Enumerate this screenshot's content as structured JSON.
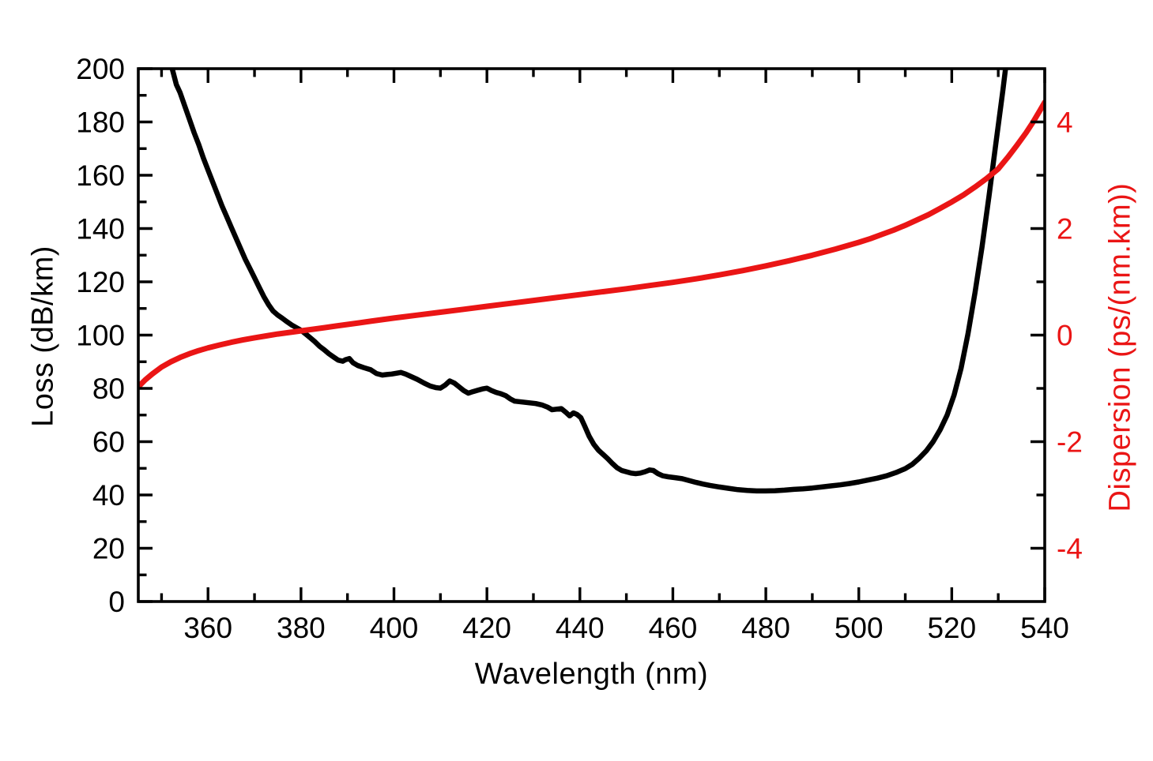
{
  "figure": {
    "background": "#ffffff"
  },
  "chart_data": {
    "type": "line",
    "title": "",
    "xlabel": "Wavelength (nm)",
    "ylabel_left": "Loss (dB/km)",
    "ylabel_right": "Dispersion (ps/(nm.km))",
    "grid": false,
    "legend": "none",
    "frame": "full-box-inward-ticks",
    "x_axis": {
      "range": [
        345,
        540
      ],
      "major_ticks": [
        360,
        380,
        400,
        420,
        440,
        460,
        480,
        500,
        520,
        540
      ],
      "minor_ticks": [
        350,
        370,
        390,
        410,
        430,
        450,
        470,
        490,
        510,
        530
      ],
      "tick_label_color": "#000000"
    },
    "y_left_axis": {
      "range": [
        0,
        200
      ],
      "major_ticks": [
        0,
        20,
        40,
        60,
        80,
        100,
        120,
        140,
        160,
        180,
        200
      ],
      "minor_ticks": [
        10,
        30,
        50,
        70,
        90,
        110,
        130,
        150,
        170,
        190
      ],
      "tick_label_color": "#000000"
    },
    "y_right_axis": {
      "range": [
        -5,
        5
      ],
      "major_ticks": [
        -4,
        -2,
        0,
        2,
        4
      ],
      "minor_ticks": [
        -3,
        -1,
        1,
        3
      ],
      "tick_label_color": "#ea1515"
    },
    "series": [
      {
        "name": "Loss",
        "data_name": "loss-curve",
        "axis": "left",
        "color": "#000000",
        "line_width": 6.5,
        "points": [
          [
            352.3,
            200
          ],
          [
            353.2,
            194
          ],
          [
            354,
            191
          ],
          [
            355,
            186
          ],
          [
            356,
            181
          ],
          [
            357,
            176
          ],
          [
            358,
            171.5
          ],
          [
            359,
            166.5
          ],
          [
            360,
            162
          ],
          [
            361,
            157.5
          ],
          [
            362,
            153
          ],
          [
            363,
            148.5
          ],
          [
            364,
            144.5
          ],
          [
            365,
            140.5
          ],
          [
            366,
            136.5
          ],
          [
            367,
            132.5
          ],
          [
            368,
            128.5
          ],
          [
            369,
            125
          ],
          [
            370,
            121.5
          ],
          [
            371,
            118
          ],
          [
            372,
            114.5
          ],
          [
            373,
            111.5
          ],
          [
            374,
            109
          ],
          [
            375,
            107.5
          ],
          [
            376,
            106.3
          ],
          [
            377,
            105
          ],
          [
            378,
            103.8
          ],
          [
            379,
            102.8
          ],
          [
            380,
            101.8
          ],
          [
            381,
            100.4
          ],
          [
            382,
            99
          ],
          [
            383,
            97.5
          ],
          [
            384,
            95.8
          ],
          [
            385,
            94.5
          ],
          [
            386,
            93
          ],
          [
            387,
            91.8
          ],
          [
            388,
            90.6
          ],
          [
            389,
            90.2
          ],
          [
            389.6,
            90.8
          ],
          [
            390.4,
            91.2
          ],
          [
            391.2,
            89.6
          ],
          [
            392.2,
            88.6
          ],
          [
            393.5,
            87.8
          ],
          [
            395,
            87
          ],
          [
            396.2,
            85.6
          ],
          [
            397.5,
            85
          ],
          [
            398.5,
            85.2
          ],
          [
            399.5,
            85.4
          ],
          [
            400.5,
            85.7
          ],
          [
            401.5,
            86
          ],
          [
            402.5,
            85.4
          ],
          [
            403.5,
            84.6
          ],
          [
            405,
            83.4
          ],
          [
            406.5,
            82
          ],
          [
            407.8,
            80.9
          ],
          [
            409,
            80.3
          ],
          [
            410,
            80.1
          ],
          [
            411,
            81.2
          ],
          [
            412,
            82.8
          ],
          [
            413,
            82
          ],
          [
            414,
            80.6
          ],
          [
            415,
            79.2
          ],
          [
            416,
            78.2
          ],
          [
            417,
            78.8
          ],
          [
            418,
            79.3
          ],
          [
            419,
            79.8
          ],
          [
            420,
            80.1
          ],
          [
            421,
            79.2
          ],
          [
            422,
            78.5
          ],
          [
            423,
            78
          ],
          [
            424,
            77.3
          ],
          [
            425,
            76.1
          ],
          [
            426,
            75.2
          ],
          [
            427.5,
            74.9
          ],
          [
            429,
            74.6
          ],
          [
            430.5,
            74.3
          ],
          [
            431.8,
            73.8
          ],
          [
            433,
            73
          ],
          [
            434,
            72
          ],
          [
            435,
            72.2
          ],
          [
            436,
            72.4
          ],
          [
            437,
            71
          ],
          [
            437.8,
            69.7
          ],
          [
            438.6,
            70.8
          ],
          [
            439.4,
            70.2
          ],
          [
            440.2,
            69
          ],
          [
            441,
            66
          ],
          [
            442,
            62
          ],
          [
            443,
            59
          ],
          [
            444,
            56.8
          ],
          [
            445,
            55.2
          ],
          [
            446,
            53.6
          ],
          [
            447,
            51.8
          ],
          [
            448,
            50.2
          ],
          [
            449,
            49.2
          ],
          [
            450,
            48.7
          ],
          [
            451,
            48.2
          ],
          [
            452,
            48
          ],
          [
            453,
            48.2
          ],
          [
            454,
            48.7
          ],
          [
            455,
            49.4
          ],
          [
            455.8,
            49.2
          ],
          [
            456.8,
            48
          ],
          [
            457.8,
            47.2
          ],
          [
            459,
            46.8
          ],
          [
            460.5,
            46.5
          ],
          [
            462,
            46.1
          ],
          [
            463.5,
            45.4
          ],
          [
            465,
            44.7
          ],
          [
            466.5,
            44.1
          ],
          [
            468,
            43.6
          ],
          [
            470,
            43
          ],
          [
            472,
            42.5
          ],
          [
            474,
            42
          ],
          [
            476,
            41.7
          ],
          [
            478,
            41.5
          ],
          [
            480,
            41.5
          ],
          [
            482,
            41.6
          ],
          [
            484,
            41.8
          ],
          [
            486,
            42.1
          ],
          [
            488,
            42.3
          ],
          [
            490,
            42.6
          ],
          [
            492,
            43
          ],
          [
            494,
            43.4
          ],
          [
            496,
            43.8
          ],
          [
            498,
            44.3
          ],
          [
            500,
            44.9
          ],
          [
            502,
            45.6
          ],
          [
            504,
            46.3
          ],
          [
            506,
            47.2
          ],
          [
            508,
            48.4
          ],
          [
            510,
            49.9
          ],
          [
            511.5,
            51.5
          ],
          [
            513,
            53.8
          ],
          [
            514.5,
            56.5
          ],
          [
            516,
            60
          ],
          [
            517.5,
            64.5
          ],
          [
            519,
            70
          ],
          [
            520.5,
            77.5
          ],
          [
            522,
            87.5
          ],
          [
            523.5,
            100.5
          ],
          [
            525,
            116
          ],
          [
            526.5,
            133
          ],
          [
            528,
            152
          ],
          [
            529.5,
            172
          ],
          [
            531,
            192
          ],
          [
            531.7,
            202
          ]
        ]
      },
      {
        "name": "Dispersion",
        "data_name": "dispersion-curve",
        "axis": "right",
        "color": "#ea1515",
        "line_width": 7,
        "points": [
          [
            345,
            -0.97
          ],
          [
            346.5,
            -0.84
          ],
          [
            348,
            -0.73
          ],
          [
            350,
            -0.6
          ],
          [
            352,
            -0.5
          ],
          [
            354,
            -0.42
          ],
          [
            356,
            -0.35
          ],
          [
            358,
            -0.29
          ],
          [
            360,
            -0.24
          ],
          [
            362.5,
            -0.185
          ],
          [
            365,
            -0.135
          ],
          [
            367.5,
            -0.09
          ],
          [
            370,
            -0.05
          ],
          [
            372.5,
            -0.015
          ],
          [
            375,
            0.02
          ],
          [
            377.5,
            0.05
          ],
          [
            380,
            0.08
          ],
          [
            382.5,
            0.11
          ],
          [
            385,
            0.14
          ],
          [
            387.5,
            0.17
          ],
          [
            390,
            0.2
          ],
          [
            392.5,
            0.23
          ],
          [
            395,
            0.26
          ],
          [
            397.5,
            0.29
          ],
          [
            400,
            0.32
          ],
          [
            405,
            0.375
          ],
          [
            410,
            0.43
          ],
          [
            415,
            0.485
          ],
          [
            420,
            0.54
          ],
          [
            425,
            0.595
          ],
          [
            430,
            0.65
          ],
          [
            435,
            0.705
          ],
          [
            440,
            0.76
          ],
          [
            445,
            0.815
          ],
          [
            450,
            0.87
          ],
          [
            455,
            0.93
          ],
          [
            460,
            0.99
          ],
          [
            465,
            1.057
          ],
          [
            470,
            1.13
          ],
          [
            475,
            1.21
          ],
          [
            480,
            1.3
          ],
          [
            485,
            1.395
          ],
          [
            490,
            1.5
          ],
          [
            495,
            1.615
          ],
          [
            500,
            1.74
          ],
          [
            502.5,
            1.81
          ],
          [
            505,
            1.89
          ],
          [
            507.5,
            1.97
          ],
          [
            510,
            2.06
          ],
          [
            512.5,
            2.16
          ],
          [
            515,
            2.26
          ],
          [
            517.5,
            2.38
          ],
          [
            520,
            2.5
          ],
          [
            522.5,
            2.63
          ],
          [
            525,
            2.78
          ],
          [
            527.5,
            2.94
          ],
          [
            530,
            3.12
          ],
          [
            532,
            3.33
          ],
          [
            534,
            3.56
          ],
          [
            536,
            3.8
          ],
          [
            537.5,
            4.0
          ],
          [
            539,
            4.22
          ],
          [
            540,
            4.37
          ]
        ]
      }
    ]
  }
}
